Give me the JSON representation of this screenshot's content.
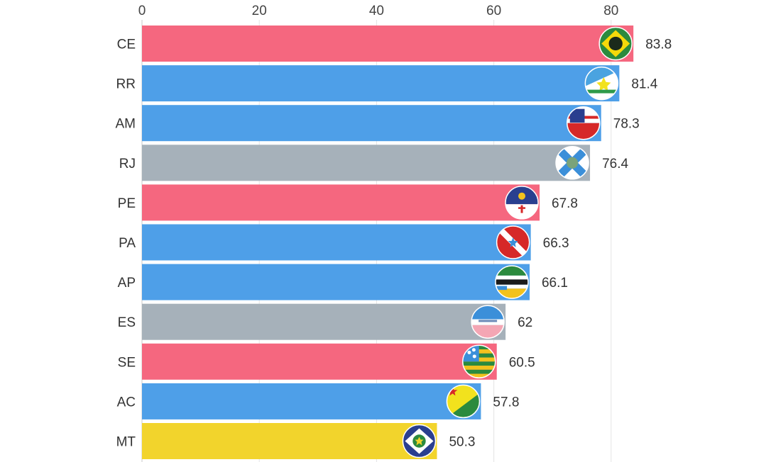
{
  "chart_data": {
    "type": "bar",
    "orientation": "horizontal",
    "categories": [
      "CE",
      "RR",
      "AM",
      "RJ",
      "PE",
      "PA",
      "AP",
      "ES",
      "SE",
      "AC",
      "MT"
    ],
    "values": [
      83.8,
      81.4,
      78.3,
      76.4,
      67.8,
      66.3,
      66.1,
      62,
      60.5,
      57.8,
      50.3
    ],
    "value_labels": [
      "83.8",
      "81.4",
      "78.3",
      "76.4",
      "67.8",
      "66.3",
      "66.1",
      "62",
      "60.5",
      "57.8",
      "50.3"
    ],
    "bar_colors": [
      "#f5677f",
      "#4e9fe8",
      "#4e9fe8",
      "#a6b1ba",
      "#f5677f",
      "#4e9fe8",
      "#4e9fe8",
      "#a6b1ba",
      "#f5677f",
      "#4e9fe8",
      "#f2d42c"
    ],
    "flag_icons": [
      "ce-flag-icon",
      "rr-flag-icon",
      "am-flag-icon",
      "rj-flag-icon",
      "pe-flag-icon",
      "pa-flag-icon",
      "ap-flag-icon",
      "es-flag-icon",
      "se-flag-icon",
      "ac-flag-icon",
      "mt-flag-icon"
    ],
    "x_ticks": [
      0,
      20,
      40,
      60,
      80
    ],
    "xlim": [
      0,
      88
    ],
    "x_axis_position": "top",
    "grid": true,
    "title": "",
    "xlabel": "",
    "ylabel": ""
  }
}
